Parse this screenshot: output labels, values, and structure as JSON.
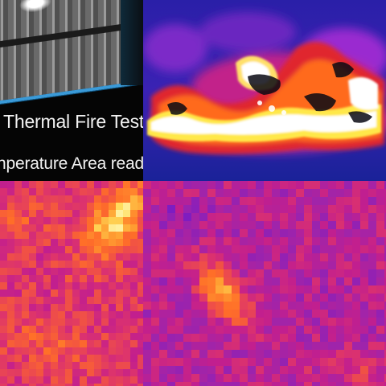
{
  "caption": {
    "line1": "Thermal Fire Test.",
    "line2": "nperature Area readin"
  },
  "colors": {
    "screen_border": "#3a9ad8",
    "thermal_background": "#1b1f9c",
    "hot_white": "#ffffff",
    "hot_yellow": "#ffe84a",
    "warm_orange": "#ff6a1e",
    "warm_magenta": "#c21f8e",
    "cool_purple": "#7a1cc4"
  }
}
